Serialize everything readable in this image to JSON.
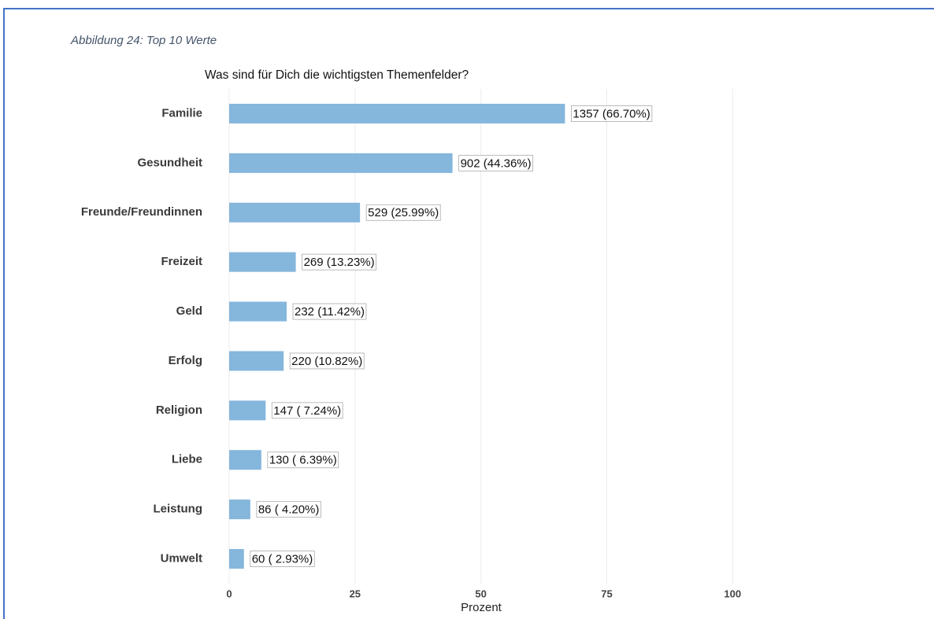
{
  "chart_data": {
    "type": "bar",
    "orientation": "horizontal",
    "caption": "Abbildung 24: Top 10 Werte",
    "title": "Was sind für Dich die wichtigsten Themenfelder?",
    "x_label": "Prozent",
    "categories": [
      "Familie",
      "Gesundheit",
      "Freunde/Freundinnen",
      "Freizeit",
      "Geld",
      "Erfolg",
      "Religion",
      "Liebe",
      "Leistung",
      "Umwelt"
    ],
    "values": [
      66.7,
      44.36,
      25.99,
      13.23,
      11.42,
      10.82,
      7.24,
      6.39,
      4.2,
      2.93
    ],
    "value_labels": [
      "1357 (66.70%)",
      "902 (44.36%)",
      "529 (25.99%)",
      "269 (13.23%)",
      "232 (11.42%)",
      "220 (10.82%)",
      "147 ( 7.24%)",
      "130 ( 6.39%)",
      "86 ( 4.20%)",
      "60 ( 2.93%)"
    ],
    "color": "#85b6dc",
    "xlim": [
      0,
      112
    ],
    "xticks": [
      0,
      25,
      50,
      75,
      100
    ],
    "grid": true
  }
}
